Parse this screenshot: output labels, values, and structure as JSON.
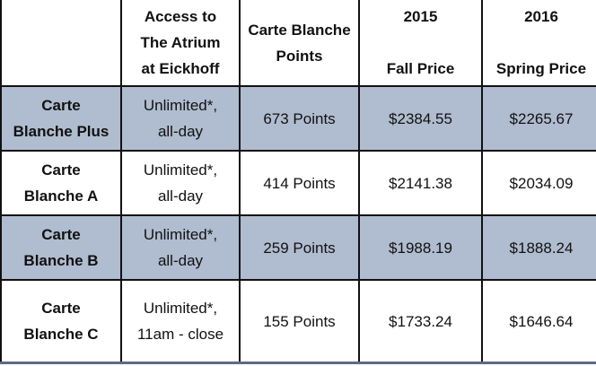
{
  "table": {
    "headers": [
      "",
      "Access to\nThe Atrium\nat Eickhoff",
      "Carte Blanche\nPoints",
      "2015\n\nFall Price",
      "2016\n\nSpring Price"
    ],
    "rows": [
      {
        "plan": "Carte\nBlanche Plus",
        "access": "Unlimited*,\nall-day",
        "points": "673 Points",
        "fall_2015": "$2384.55",
        "spring_2016": "$2265.67"
      },
      {
        "plan": "Carte\nBlanche A",
        "access": "Unlimited*,\nall-day",
        "points": "414 Points",
        "fall_2015": "$2141.38",
        "spring_2016": "$2034.09"
      },
      {
        "plan": "Carte\nBlanche B",
        "access": "Unlimited*,\nall-day",
        "points": "259 Points",
        "fall_2015": "$1988.19",
        "spring_2016": "$1888.24"
      },
      {
        "plan": "Carte\nBlanche C",
        "access": "Unlimited*,\n11am - close",
        "points": "155 Points",
        "fall_2015": "$1733.24",
        "spring_2016": "$1646.64"
      }
    ]
  },
  "colors": {
    "shaded_row": "#b0bccf",
    "border": "#111111"
  }
}
